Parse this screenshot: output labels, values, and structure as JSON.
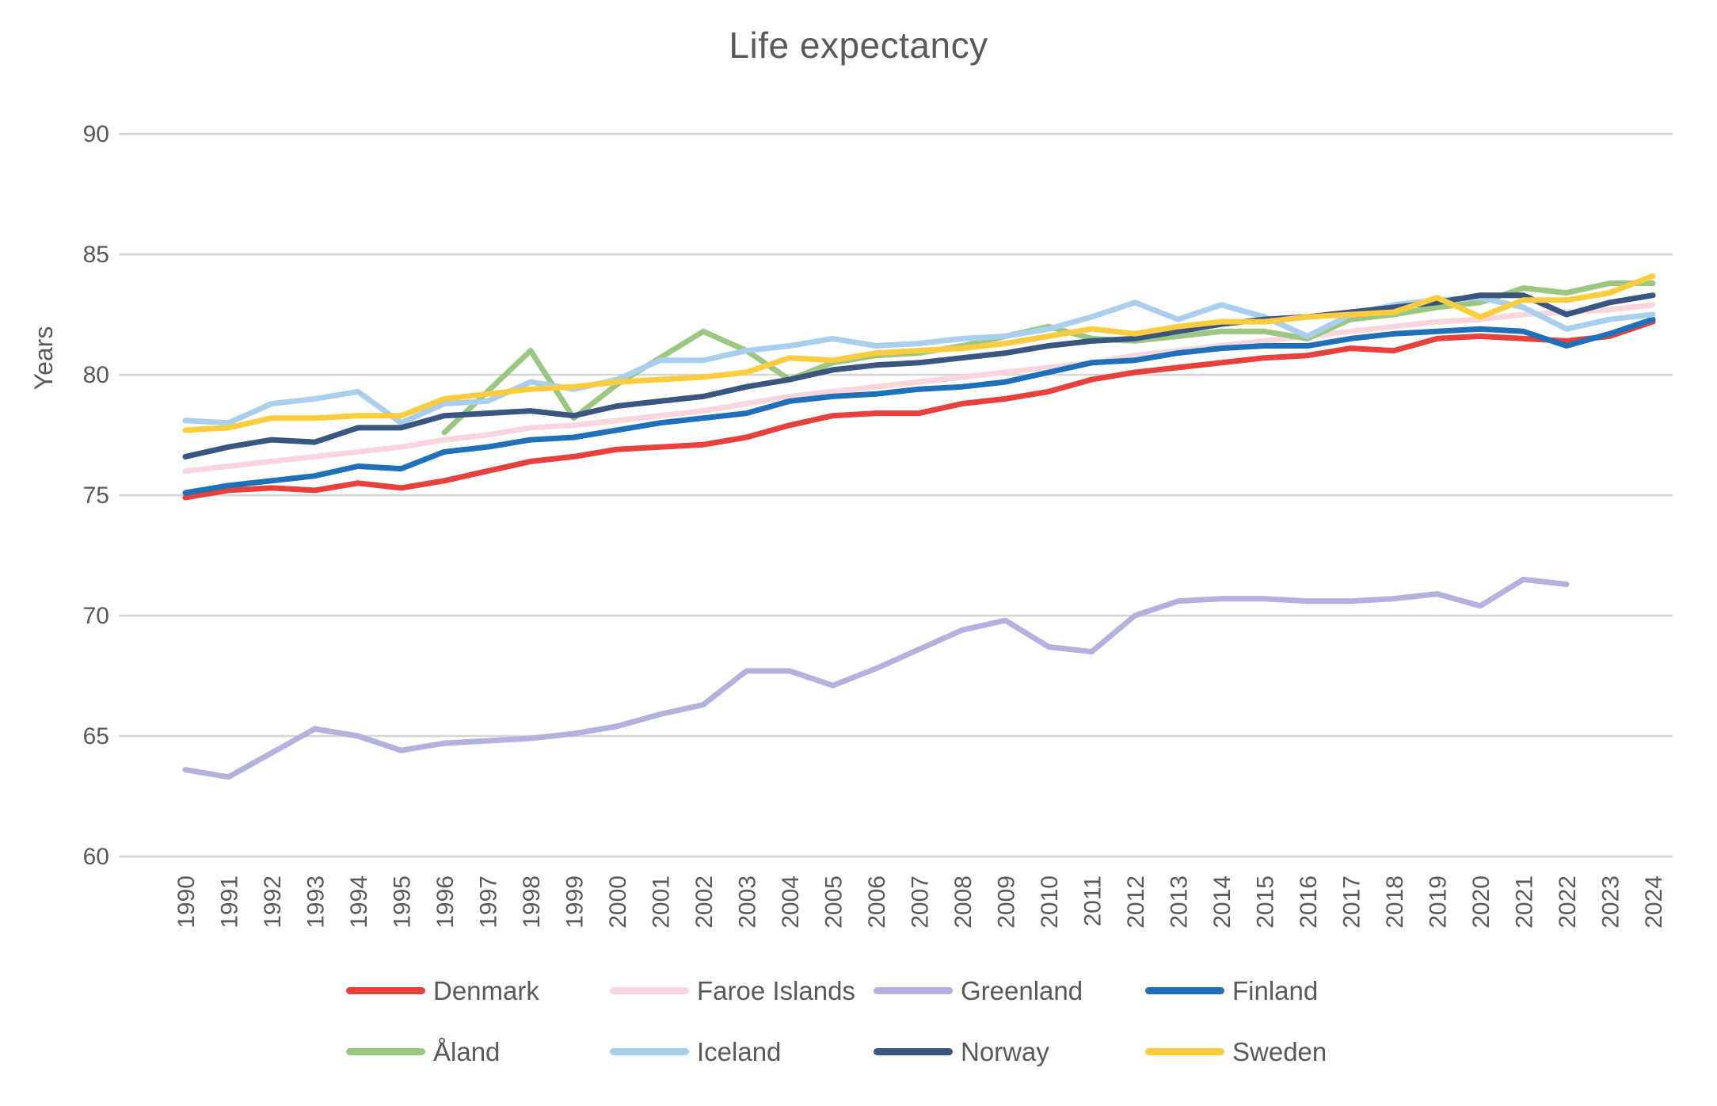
{
  "title": "Life expectancy",
  "y_axis_title": "Years",
  "colors": {
    "text": "#595959",
    "gridline": "#d6d6d6"
  },
  "chart_data": {
    "type": "line",
    "title": "Life expectancy",
    "xlabel": "",
    "ylabel": "Years",
    "ylim": [
      60,
      90
    ],
    "yticks": [
      90,
      85,
      80,
      75,
      70,
      65,
      60
    ],
    "grid": "horizontal",
    "legend_position": "bottom",
    "x": [
      1990,
      1991,
      1992,
      1993,
      1994,
      1995,
      1996,
      1997,
      1998,
      1999,
      2000,
      2001,
      2002,
      2003,
      2004,
      2005,
      2006,
      2007,
      2008,
      2009,
      2010,
      2011,
      2012,
      2013,
      2014,
      2015,
      2016,
      2017,
      2018,
      2019,
      2020,
      2021,
      2022,
      2023,
      2024
    ],
    "series": [
      {
        "name": "Denmark",
        "color": "#e8413d",
        "values": [
          74.9,
          75.2,
          75.3,
          75.2,
          75.5,
          75.3,
          75.6,
          76.0,
          76.4,
          76.6,
          76.9,
          77.0,
          77.1,
          77.4,
          77.9,
          78.3,
          78.4,
          78.4,
          78.8,
          79.0,
          79.3,
          79.8,
          80.1,
          80.3,
          80.5,
          80.7,
          80.8,
          81.1,
          81.0,
          81.5,
          81.6,
          81.5,
          81.4,
          81.6,
          82.2
        ]
      },
      {
        "name": "Faroe Islands",
        "color": "#f9d6dd",
        "values": [
          76.0,
          76.2,
          76.4,
          76.6,
          76.8,
          77.0,
          77.3,
          77.5,
          77.8,
          77.9,
          78.1,
          78.3,
          78.5,
          78.8,
          79.1,
          79.3,
          79.5,
          79.7,
          79.9,
          80.1,
          80.3,
          80.5,
          80.8,
          81.0,
          81.2,
          81.4,
          81.6,
          81.8,
          82.0,
          82.2,
          82.3,
          82.5,
          82.6,
          82.7,
          82.9
        ]
      },
      {
        "name": "Greenland",
        "color": "#b3b1de",
        "values": [
          63.6,
          63.3,
          64.3,
          65.3,
          65.0,
          64.4,
          64.7,
          64.8,
          64.9,
          65.1,
          65.4,
          65.9,
          66.3,
          67.7,
          67.7,
          67.1,
          67.8,
          68.6,
          69.4,
          69.8,
          68.7,
          68.5,
          70.0,
          70.6,
          70.7,
          70.7,
          70.6,
          70.6,
          70.7,
          70.9,
          70.4,
          71.5,
          71.3,
          null,
          null
        ]
      },
      {
        "name": "Finland",
        "color": "#1f70b8",
        "values": [
          75.1,
          75.4,
          75.6,
          75.8,
          76.2,
          76.1,
          76.8,
          77.0,
          77.3,
          77.4,
          77.7,
          78.0,
          78.2,
          78.4,
          78.9,
          79.1,
          79.2,
          79.4,
          79.5,
          79.7,
          80.1,
          80.5,
          80.6,
          80.9,
          81.1,
          81.2,
          81.2,
          81.5,
          81.7,
          81.8,
          81.9,
          81.8,
          81.2,
          81.7,
          82.3
        ]
      },
      {
        "name": "Åland",
        "color": "#9cc783",
        "values": [
          null,
          null,
          null,
          null,
          null,
          null,
          77.6,
          79.3,
          81.0,
          78.2,
          79.6,
          80.7,
          81.8,
          81.0,
          79.8,
          80.5,
          80.8,
          80.9,
          81.2,
          81.6,
          82.0,
          81.5,
          81.4,
          81.6,
          81.8,
          81.8,
          81.5,
          82.3,
          82.5,
          82.8,
          83.0,
          83.6,
          83.4,
          83.8,
          83.8
        ]
      },
      {
        "name": "Iceland",
        "color": "#aacfee",
        "values": [
          78.1,
          78.0,
          78.8,
          79.0,
          79.3,
          78.0,
          78.8,
          78.9,
          79.7,
          79.4,
          79.8,
          80.6,
          80.6,
          81.0,
          81.2,
          81.5,
          81.2,
          81.3,
          81.5,
          81.6,
          81.9,
          82.4,
          83.0,
          82.3,
          82.9,
          82.4,
          81.6,
          82.5,
          82.9,
          83.1,
          83.2,
          82.8,
          81.9,
          82.3,
          82.5
        ]
      },
      {
        "name": "Norway",
        "color": "#3a5680",
        "values": [
          76.6,
          77.0,
          77.3,
          77.2,
          77.8,
          77.8,
          78.3,
          78.4,
          78.5,
          78.3,
          78.7,
          78.9,
          79.1,
          79.5,
          79.8,
          80.2,
          80.4,
          80.5,
          80.7,
          80.9,
          81.2,
          81.4,
          81.5,
          81.8,
          82.1,
          82.3,
          82.4,
          82.6,
          82.8,
          83.0,
          83.3,
          83.3,
          82.5,
          83.0,
          83.3
        ]
      },
      {
        "name": "Sweden",
        "color": "#fbcc3d",
        "values": [
          77.7,
          77.8,
          78.2,
          78.2,
          78.3,
          78.3,
          79.0,
          79.2,
          79.4,
          79.5,
          79.7,
          79.8,
          79.9,
          80.1,
          80.7,
          80.6,
          80.9,
          81.0,
          81.1,
          81.3,
          81.6,
          81.9,
          81.7,
          82.0,
          82.2,
          82.2,
          82.4,
          82.5,
          82.6,
          83.2,
          82.4,
          83.1,
          83.1,
          83.4,
          84.1
        ]
      }
    ]
  },
  "legend": {
    "items": [
      "Denmark",
      "Faroe Islands",
      "Greenland",
      "Finland",
      "Åland",
      "Iceland",
      "Norway",
      "Sweden"
    ]
  }
}
